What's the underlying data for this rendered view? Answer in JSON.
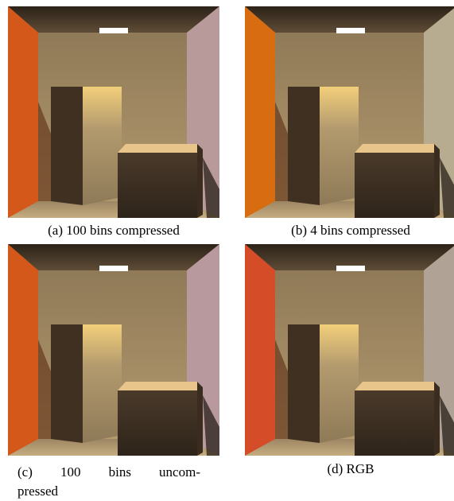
{
  "figures": [
    {
      "caption_lines": [
        "(a) 100 bins compressed"
      ]
    },
    {
      "caption_lines": [
        "(b) 4 bins compressed"
      ]
    },
    {
      "caption_lines": [
        "(c) 100 bins uncom-",
        "pressed"
      ]
    },
    {
      "caption_lines": [
        "(d) RGB"
      ]
    }
  ]
}
